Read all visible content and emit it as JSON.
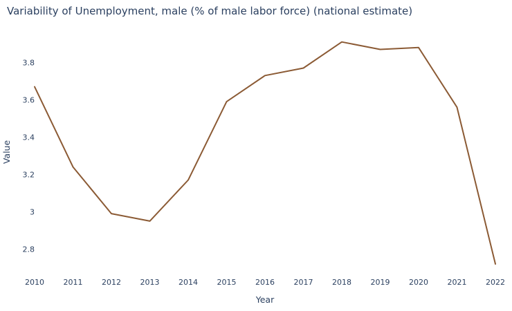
{
  "chart_data": {
    "type": "line",
    "title": "Variability of Unemployment, male (% of male labor force) (national estimate)",
    "xlabel": "Year",
    "ylabel": "Value",
    "x": [
      "2010",
      "2011",
      "2012",
      "2013",
      "2014",
      "2015",
      "2016",
      "2017",
      "2018",
      "2019",
      "2020",
      "2021",
      "2022"
    ],
    "y_ticks": [
      "2.8",
      "3",
      "3.2",
      "3.4",
      "3.6",
      "3.8"
    ],
    "ylim": [
      2.72,
      3.92
    ],
    "series": [
      {
        "values": [
          3.67,
          3.24,
          2.99,
          2.95,
          3.17,
          3.59,
          3.73,
          3.77,
          3.91,
          3.87,
          3.88,
          3.56,
          2.72
        ],
        "color": "#8b5a34"
      }
    ],
    "grid": false,
    "legend": false
  }
}
